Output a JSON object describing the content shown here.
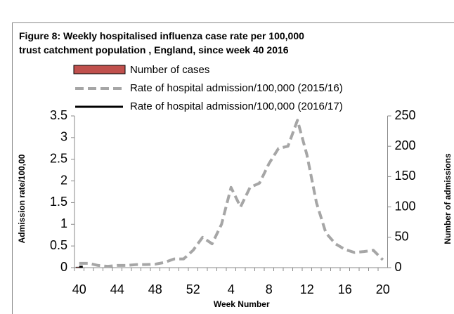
{
  "chart_data": {
    "type": "line",
    "title": "Figure 8: Weekly hospitalised influenza case rate per 100,000 trust catchment population , England, since week 40 2016",
    "xlabel": "Week Number",
    "ylabel": "Admission rate/100,00",
    "y2label": "Number of admissions",
    "categories": [
      40,
      null,
      null,
      null,
      44,
      null,
      null,
      null,
      48,
      null,
      null,
      null,
      52,
      null,
      null,
      null,
      4,
      null,
      null,
      null,
      8,
      null,
      null,
      null,
      12,
      null,
      null,
      null,
      16,
      null,
      null,
      null,
      20
    ],
    "series": [
      {
        "name": "Number of cases",
        "kind": "bar",
        "color": "#c0504d",
        "axis": "y2",
        "values": [
          1,
          null,
          null,
          null,
          null,
          null,
          null,
          null,
          null,
          null,
          null,
          null,
          null,
          null,
          null,
          null,
          null,
          null,
          null,
          null,
          null,
          null,
          null,
          null,
          null,
          null,
          null,
          null,
          null,
          null,
          null,
          null,
          null
        ]
      },
      {
        "name": "Rate of hospital admission/100,000 (2015/16)",
        "kind": "dashed",
        "color": "#a6a6a6",
        "values": [
          0.1,
          0.1,
          0.05,
          0.03,
          0.05,
          0.05,
          0.07,
          0.07,
          0.08,
          0.12,
          0.2,
          0.2,
          0.4,
          0.7,
          0.55,
          1.0,
          1.85,
          1.4,
          1.85,
          1.95,
          2.4,
          2.75,
          2.8,
          3.4,
          2.6,
          1.5,
          0.8,
          0.55,
          0.42,
          0.35,
          0.37,
          0.4,
          0.18
        ]
      },
      {
        "name": "Rate of hospital admission/100,000 (2016/17)",
        "kind": "solid",
        "color": "#000000",
        "values": [
          0.02,
          null,
          null,
          null,
          null,
          null,
          null,
          null,
          null,
          null,
          null,
          null,
          null,
          null,
          null,
          null,
          null,
          null,
          null,
          null,
          null,
          null,
          null,
          null,
          null,
          null,
          null,
          null,
          null,
          null,
          null,
          null,
          null
        ]
      }
    ],
    "ylim": [
      0,
      3.5
    ],
    "yticks": [
      0,
      0.5,
      1,
      1.5,
      2,
      2.5,
      3,
      3.5
    ],
    "y2lim": [
      0,
      250
    ],
    "y2ticks": [
      0,
      50,
      100,
      150,
      200,
      250
    ]
  }
}
